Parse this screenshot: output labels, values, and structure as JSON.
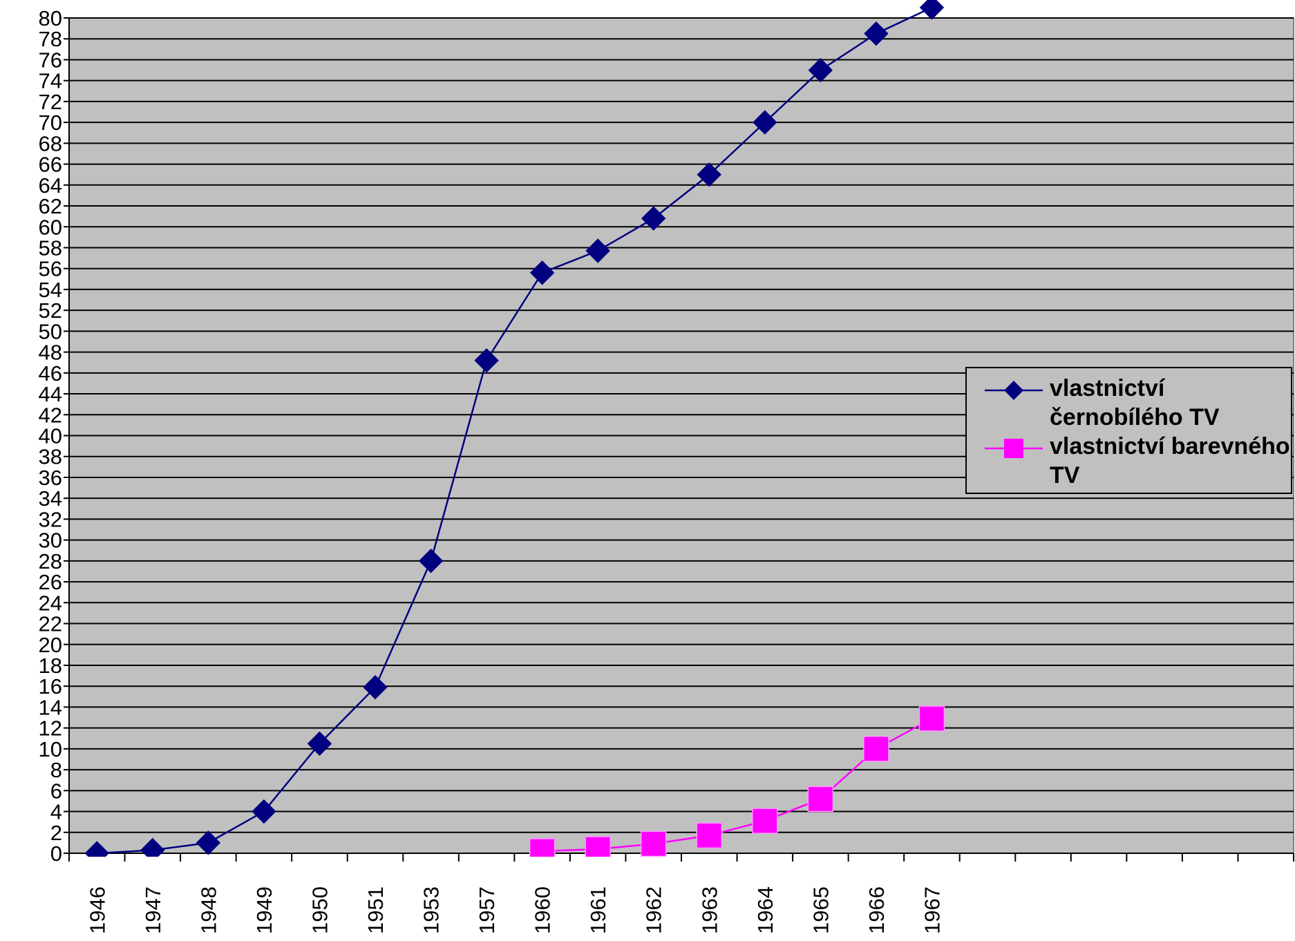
{
  "chart_data": {
    "type": "line",
    "categories": [
      "1946",
      "1947",
      "1948",
      "1949",
      "1950",
      "1951",
      "1953",
      "1957",
      "1960",
      "1961",
      "1962",
      "1963",
      "1964",
      "1965",
      "1966",
      "1967",
      null,
      null,
      null,
      null,
      null,
      null
    ],
    "series": [
      {
        "name": "vlastnictví černobílého TV",
        "color": "#000080",
        "marker": "diamond",
        "values": [
          0,
          0.3,
          1,
          4,
          10.5,
          15.9,
          28,
          47.2,
          55.6,
          57.7,
          60.8,
          65,
          70,
          75,
          78.5,
          81,
          null,
          null,
          null,
          null,
          null,
          null
        ]
      },
      {
        "name": "vlastnictví barevného TV",
        "color": "#ff00ff",
        "marker": "square",
        "values": [
          null,
          null,
          null,
          null,
          null,
          null,
          null,
          null,
          0.2,
          0.4,
          0.9,
          1.7,
          3.1,
          5.2,
          10,
          12.9,
          null,
          null,
          null,
          null,
          null,
          null
        ]
      }
    ],
    "ylim": [
      0,
      80
    ],
    "yticks": [
      0,
      2,
      4,
      6,
      8,
      10,
      12,
      14,
      16,
      18,
      20,
      22,
      24,
      26,
      28,
      30,
      32,
      34,
      36,
      38,
      40,
      42,
      44,
      46,
      48,
      50,
      52,
      54,
      56,
      58,
      60,
      62,
      64,
      66,
      68,
      70,
      72,
      74,
      76,
      78,
      80
    ],
    "grid": true,
    "background": "#c0c0c0",
    "legend": "right"
  }
}
